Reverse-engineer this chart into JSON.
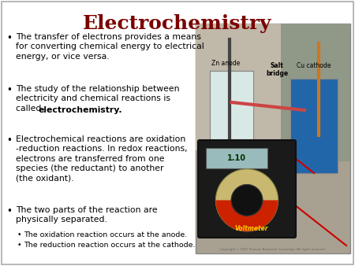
{
  "title": "Electrochemistry",
  "title_color": "#7B0000",
  "title_fontsize": 18,
  "background_color": "#FFFFFF",
  "text_color": "#000000",
  "border_color": "#AAAAAA",
  "bullet1": "The transfer of electrons provides a means\nfor converting chemical energy to electrical\nenergy, or vice versa.",
  "bullet2_plain": "The study of the relationship between\nelectricity and chemical reactions is\ncalled ",
  "bullet2_bold": "electrochemistry.",
  "bullet3": "Electrochemical reactions are oxidation\n-reduction reactions. In redox reactions,\nelectrons are transferred from one\nspecies (the reductant) to another\n(the oxidant).",
  "bullet4": "The two parts of the reaction are\nphysically separated.",
  "sub1": "The oxidation reaction occurs at the anode.",
  "sub2": "The reduction reaction occurs at the cathode.",
  "img_bg_color": "#B0A898",
  "img_border_color": "#888888",
  "beaker_left_color": "#C8D8D4",
  "beaker_right_color": "#3388BB",
  "voltmeter_color": "#1A1A1A",
  "voltmeter_label_color": "#FFCC00",
  "display_color": "#88AAAA",
  "dial_color": "#CC3300",
  "wire_black": "#222222",
  "wire_red": "#CC0000",
  "label_color": "#000000",
  "copyright": "Copyright © 2007 Pearson Benjamin Cummings. All rights reserved.",
  "fontsize_bullet": 7.8,
  "fontsize_sub": 6.8
}
